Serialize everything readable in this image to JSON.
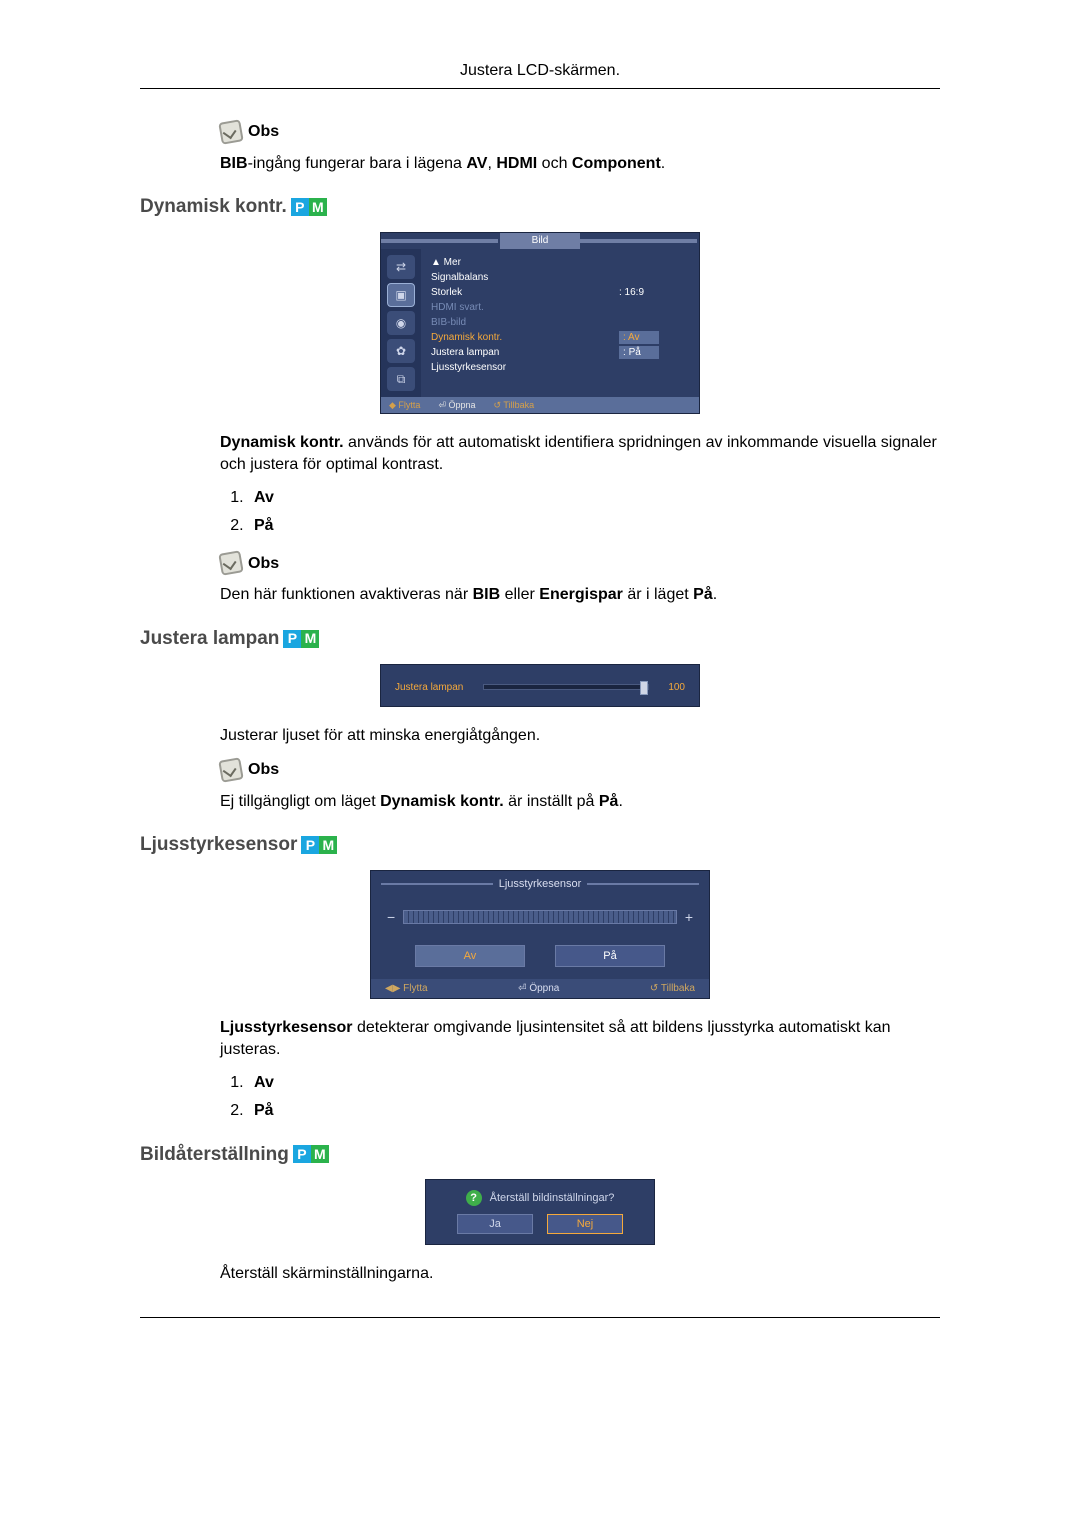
{
  "page": {
    "header_title": "Justera LCD-skärmen.",
    "colors": {
      "text": "#000000",
      "heading": "#4a4a4a",
      "osd_bg": "#2e3e66",
      "osd_highlight": "#f5a93b",
      "badge_p": "#1aa6e0",
      "badge_m": "#2bb24c"
    }
  },
  "note_label": "Obs",
  "intro_note_html": "BIB-ingång fungerar bara i lägena AV, HDMI och Component.",
  "intro_note_parts": {
    "p1": "BIB",
    "p2": "-ingång fungerar bara i lägena ",
    "p3": "AV",
    "p4": ", ",
    "p5": "HDMI",
    "p6": " och ",
    "p7": "Component",
    "p8": "."
  },
  "sec1": {
    "heading": "Dynamisk kontr.",
    "osd": {
      "tab_title": "Bild",
      "rows": {
        "mer": "▲ Mer",
        "signalbalans": "Signalbalans",
        "storlek_lbl": "Storlek",
        "storlek_val": ": 16:9",
        "hdmi_svart": "HDMI svart.",
        "bib_bild": "BIB-bild",
        "dynkontr_lbl": "Dynamisk kontr.",
        "dynkontr_val": "Av",
        "justera_lbl": "Justera lampan",
        "justera_val": "På",
        "ljussensor": "Ljusstyrkesensor"
      },
      "foot": {
        "flytta": "Flytta",
        "oppna": "Öppna",
        "tillbaka": "Tillbaka"
      }
    },
    "desc_parts": {
      "p1": "Dynamisk kontr.",
      "p2": " används för att automatiskt identifiera spridningen av inkommande visuella signaler och justera för optimal kontrast."
    },
    "options": {
      "o1": "Av",
      "o2": "På"
    },
    "note2_parts": {
      "p1": "Den här funktionen avaktiveras när ",
      "p2": "BIB",
      "p3": " eller ",
      "p4": "Energispar",
      "p5": " är i läget ",
      "p6": "På",
      "p7": "."
    }
  },
  "sec2": {
    "heading": "Justera lampan",
    "osd": {
      "label": "Justera lampan",
      "value": "100"
    },
    "desc": "Justerar ljuset för att minska energiåtgången.",
    "note_parts": {
      "p1": "Ej tillgängligt om läget ",
      "p2": "Dynamisk kontr.",
      "p3": " är inställt på ",
      "p4": "På",
      "p5": "."
    }
  },
  "sec3": {
    "heading": "Ljusstyrkesensor",
    "osd": {
      "title": "Ljusstyrkesensor",
      "minus": "−",
      "plus": "+",
      "btn_av": "Av",
      "btn_pa": "På",
      "foot": {
        "flytta": "Flytta",
        "oppna": "Öppna",
        "tillbaka": "Tillbaka"
      }
    },
    "desc_parts": {
      "p1": "Ljusstyrkesensor",
      "p2": " detekterar omgivande ljusintensitet så att bildens ljusstyrka automatiskt kan justeras."
    },
    "options": {
      "o1": "Av",
      "o2": "På"
    }
  },
  "sec4": {
    "heading": "Bildåterställning",
    "osd": {
      "question": "Återställ bildinställningar?",
      "btn_ja": "Ja",
      "btn_nej": "Nej"
    },
    "desc": "Återställ skärminställningarna."
  }
}
